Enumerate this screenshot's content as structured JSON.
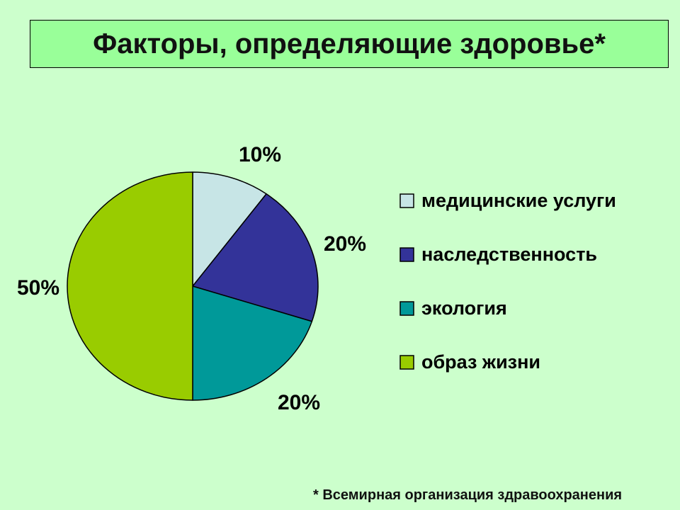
{
  "title": "Факторы, определяющие здоровье*",
  "footnote": "* Всемирная организация здравоохранения",
  "chart_data": {
    "type": "pie",
    "title": "",
    "legend_position": "right",
    "slices": [
      {
        "label": "медицинские услуги",
        "value": 10,
        "display": "10%",
        "color": "#c7e5e6"
      },
      {
        "label": "наследственность",
        "value": 20,
        "display": "20%",
        "color": "#333399"
      },
      {
        "label": "экология",
        "value": 20,
        "display": "20%",
        "color": "#009999"
      },
      {
        "label": "образ жизни",
        "value": 50,
        "display": "50%",
        "color": "#99cc00"
      }
    ]
  }
}
